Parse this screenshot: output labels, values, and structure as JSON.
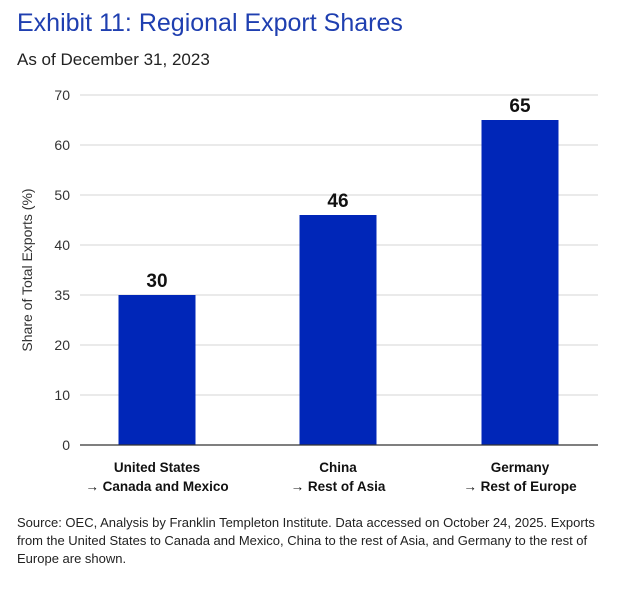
{
  "title": "Exhibit 11: Regional Export Shares",
  "subtitle": "As of December 31, 2023",
  "source": "Source: OEC, Analysis by Franklin Templeton Institute. Data accessed on October 24, 2025. Exports from the United States to Canada and Mexico, China to the rest of Asia, and Germany to the rest of Europe are shown.",
  "colors": {
    "bar": "#0026b8",
    "title": "#1f3fb0",
    "grid": "#d4d4d4",
    "axis": "#333333"
  },
  "chart_data": {
    "type": "bar",
    "title": "Exhibit 11: Regional Export Shares",
    "subtitle": "As of December 31, 2023",
    "ylabel": "Share of Total Exports (%)",
    "xlabel": "",
    "ylim": [
      0,
      70
    ],
    "yticks": [
      "0",
      "10",
      "20",
      "35",
      "40",
      "50",
      "60",
      "70"
    ],
    "grid": true,
    "legend": "none",
    "categories": [
      [
        "United States",
        "→ Canada and Mexico"
      ],
      [
        "China",
        "→ Rest of Asia"
      ],
      [
        "Germany",
        "→ Rest of Europe"
      ]
    ],
    "values": [
      30,
      46,
      65
    ],
    "data_labels": [
      "30",
      "46",
      "65"
    ]
  }
}
